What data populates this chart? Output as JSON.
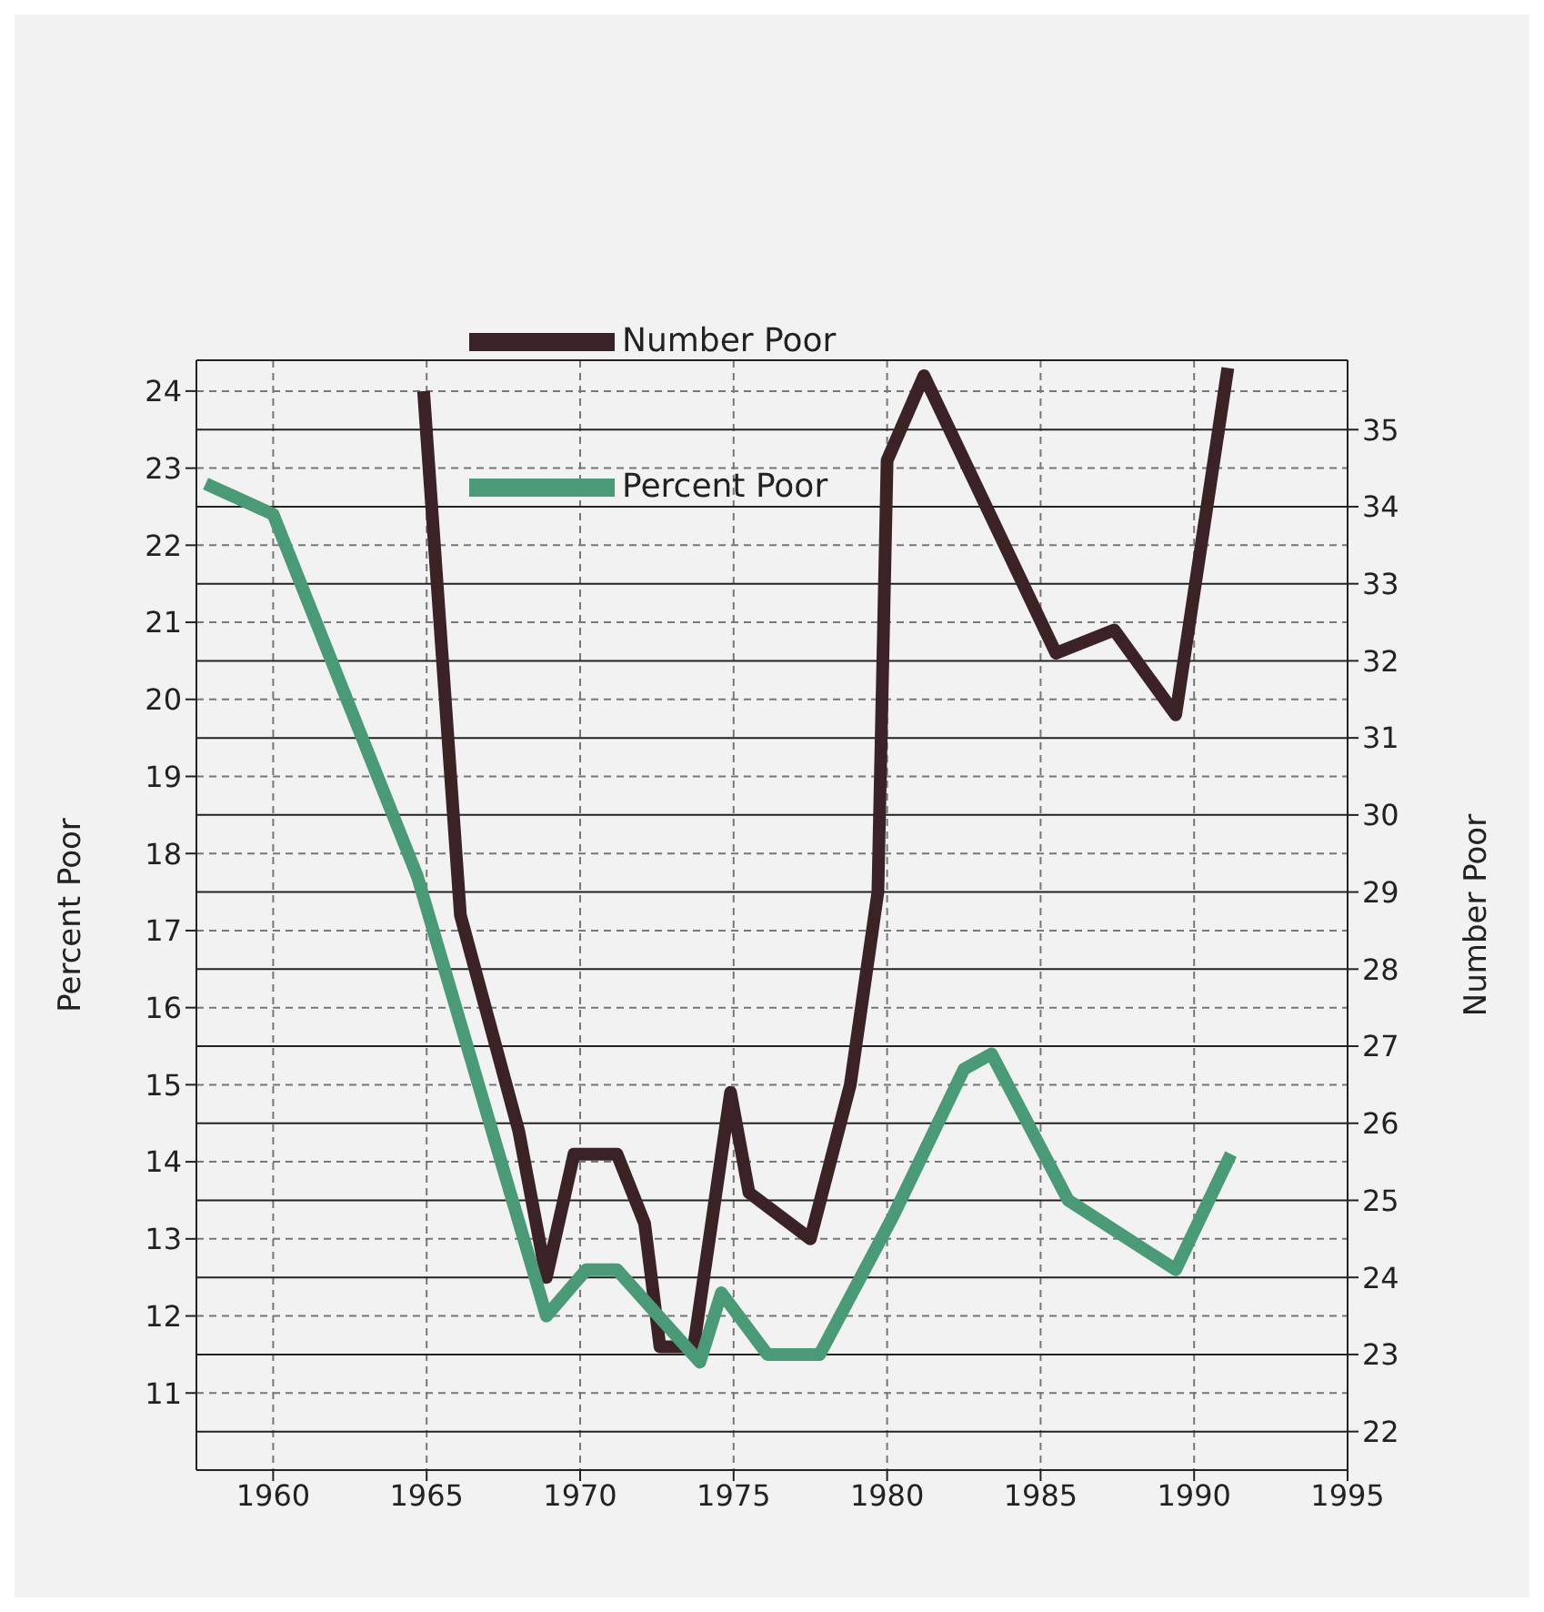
{
  "chart_data": {
    "type": "line",
    "ylabel": "Percent Poor",
    "y2label": "Number Poor",
    "xlim": [
      1957.5,
      1995
    ],
    "xticks": [
      1960,
      1965,
      1970,
      1975,
      1980,
      1985,
      1990,
      1995
    ],
    "ylim": [
      10,
      24.4
    ],
    "yticks": [
      11,
      12,
      13,
      14,
      15,
      16,
      17,
      18,
      19,
      20,
      21,
      22,
      23,
      24
    ],
    "y2lim": [
      21.5,
      35.9
    ],
    "y2ticks": [
      22,
      23,
      24,
      25,
      26,
      27,
      28,
      29,
      30,
      31,
      32,
      33,
      34,
      35
    ],
    "grid": true,
    "legend": "top",
    "line_style": "solid",
    "marker": "none",
    "series": [
      {
        "name": "Number Poor",
        "color": "#3a2226",
        "axis": "y2",
        "x": [
          1964.9,
          1966.1,
          1968,
          1968.9,
          1969.8,
          1971.2,
          1972.1,
          1972.6,
          1973.7,
          1974.9,
          1975.5,
          1977.5,
          1978.8,
          1979.7,
          1980,
          1981.2,
          1985.5,
          1987.4,
          1989.4,
          1991.1
        ],
        "values": [
          35.5,
          28.7,
          25.9,
          24,
          25.6,
          25.6,
          24.7,
          23.1,
          23.1,
          26.4,
          25.1,
          24.5,
          26.5,
          29,
          34.6,
          35.7,
          32.1,
          32.4,
          31.3,
          35.8
        ]
      },
      {
        "name": "Percent Poor",
        "color": "#4a9a78",
        "x": [
          1957.8,
          1960,
          1964.7,
          1968.9,
          1970.2,
          1971.2,
          1973.9,
          1974.6,
          1976.1,
          1977.8,
          1980.2,
          1982.5,
          1983.4,
          1985.9,
          1989.4,
          1991.2
        ],
        "values": [
          22.8,
          22.4,
          17.7,
          12,
          12.6,
          12.6,
          11.4,
          12.3,
          11.5,
          11.5,
          13.3,
          15.2,
          15.4,
          13.5,
          12.6,
          14.1
        ]
      }
    ]
  }
}
